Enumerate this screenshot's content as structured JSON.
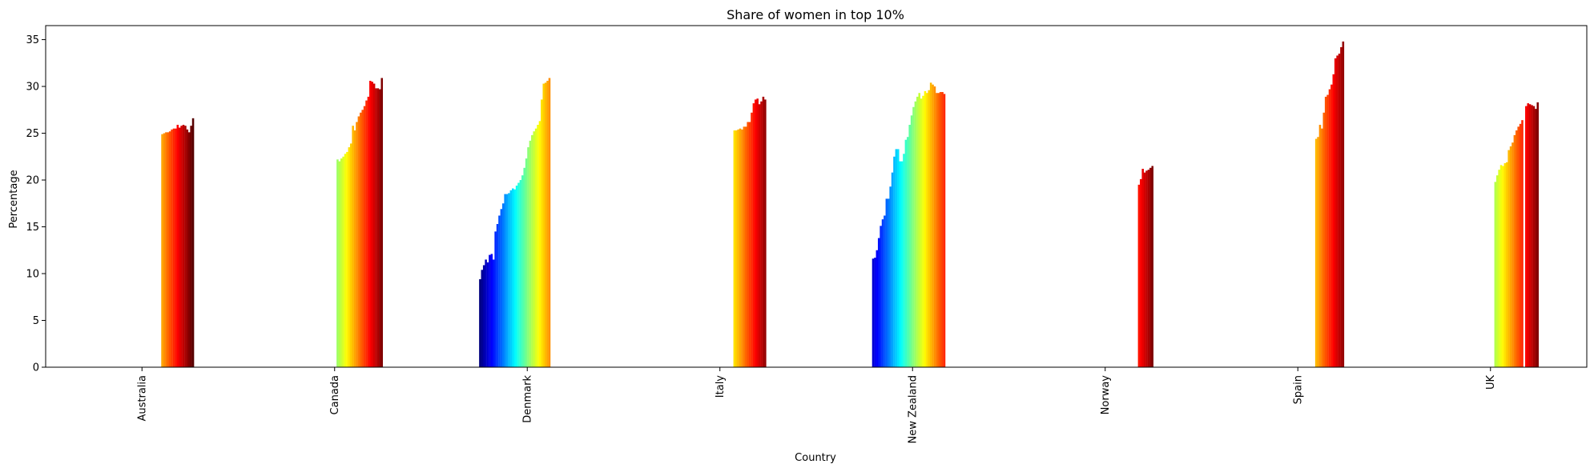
{
  "chart_data": {
    "type": "bar",
    "title": "Share of women in top 10%",
    "xlabel": "Country",
    "ylabel": "Percentage",
    "ylim": [
      0,
      36.5
    ],
    "yticks": [
      0,
      5,
      10,
      15,
      20,
      25,
      30,
      35
    ],
    "grid": false,
    "legend": "none",
    "colormap": "jet",
    "series_count": 50,
    "categories": [
      "Australia",
      "Canada",
      "Denmark",
      "Italy",
      "New Zealand",
      "Norway",
      "Spain",
      "UK"
    ],
    "groups": [
      {
        "category": "Australia",
        "start_index": 35,
        "values": [
          24.9,
          25.0,
          25.1,
          25.1,
          25.2,
          25.4,
          25.5,
          25.5,
          25.9,
          25.6,
          25.8,
          25.9,
          25.8,
          25.4,
          25.1,
          25.8,
          26.6
        ]
      },
      {
        "category": "Canada",
        "start_index": 26,
        "values": [
          22.2,
          22.0,
          22.3,
          22.5,
          22.8,
          23.0,
          23.5,
          23.9,
          25.8,
          25.3,
          26.2,
          26.8,
          27.2,
          27.5,
          27.9,
          28.5,
          28.9,
          30.6,
          30.5,
          30.3,
          29.8,
          29.8,
          29.7,
          30.9
        ]
      },
      {
        "category": "Denmark",
        "start_index": 0,
        "values": [
          9.4,
          10.4,
          10.9,
          11.5,
          11.2,
          12.0,
          12.1,
          11.5,
          14.5,
          15.3,
          16.2,
          16.9,
          17.5,
          18.5,
          18.5,
          18.6,
          18.9,
          19.1,
          19.0,
          19.4,
          19.7,
          20.0,
          20.5,
          21.3,
          22.3,
          23.5,
          24.2,
          24.8,
          25.2,
          25.5,
          25.9,
          26.3,
          28.6,
          30.3,
          30.4,
          30.6,
          30.9
        ]
      },
      {
        "category": "Italy",
        "start_index": 32,
        "values": [
          25.3,
          25.3,
          25.4,
          25.5,
          25.4,
          25.7,
          25.7,
          26.2,
          26.2,
          27.2,
          28.2,
          28.6,
          28.7,
          28.1,
          28.4,
          28.9,
          28.6
        ]
      },
      {
        "category": "New Zealand",
        "start_index": 4,
        "values": [
          11.6,
          11.7,
          12.5,
          13.8,
          15.1,
          15.8,
          16.2,
          18.0,
          18.0,
          19.3,
          20.8,
          22.5,
          23.3,
          23.3,
          22.0,
          22.0,
          22.8,
          24.3,
          24.6,
          25.9,
          26.9,
          27.8,
          28.4,
          28.9,
          29.3,
          28.7,
          29.0,
          29.5,
          29.3,
          29.6,
          30.4,
          30.2,
          30.0,
          29.3,
          29.3,
          29.4,
          29.4,
          29.2
        ]
      },
      {
        "category": "Norway",
        "start_index": 42,
        "values": [
          19.5,
          20.1,
          21.2,
          20.8,
          21.0,
          21.1,
          21.3,
          21.5
        ]
      },
      {
        "category": "Spain",
        "start_index": 34,
        "values": [
          24.4,
          24.6,
          25.9,
          25.5,
          27.2,
          28.9,
          29.1,
          29.7,
          30.2,
          31.3,
          33.0,
          33.3,
          33.5,
          34.2,
          34.8
        ]
      },
      {
        "category": "UK",
        "start_index": 27,
        "values": [
          19.8,
          20.5,
          21.1,
          21.6,
          21.5,
          21.8,
          21.9,
          23.2,
          23.6,
          24.0,
          24.8,
          25.3,
          25.7,
          26.0,
          26.4,
          null,
          27.9,
          28.2,
          28.1,
          28.0,
          27.9,
          27.6,
          28.3
        ]
      }
    ]
  }
}
